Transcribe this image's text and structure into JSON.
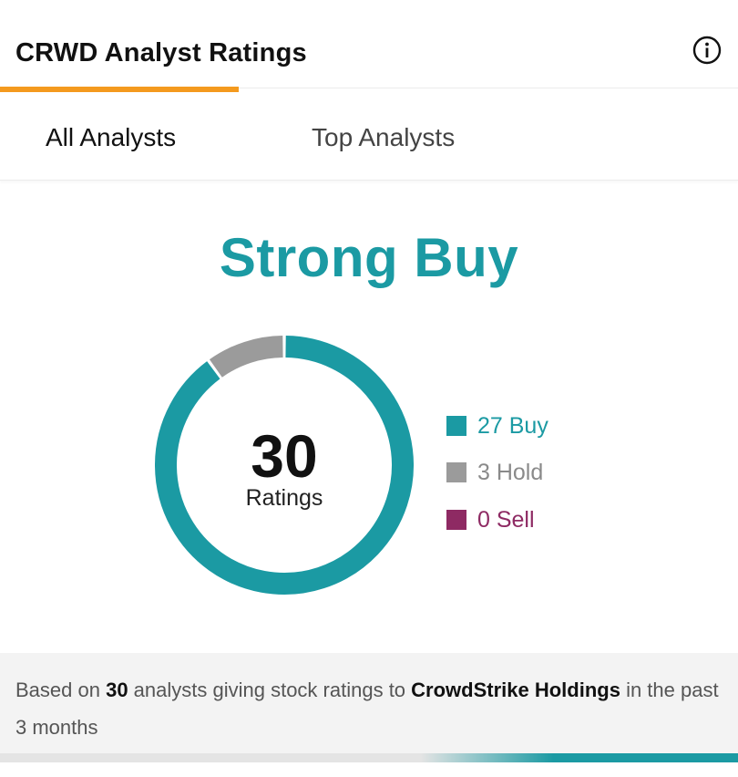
{
  "header": {
    "title": "CRWD Analyst Ratings",
    "info_icon": "info-circle-icon"
  },
  "tabs": [
    {
      "label": "All Analysts",
      "active": true
    },
    {
      "label": "Top Analysts",
      "active": false
    }
  ],
  "accent_color": "#f49a1e",
  "consensus": "Strong Buy",
  "summary": {
    "total": "30",
    "total_label": "Ratings"
  },
  "chart_data": {
    "type": "pie",
    "categories": [
      "Buy",
      "Hold",
      "Sell"
    ],
    "values": [
      27,
      3,
      0
    ],
    "colors": [
      "#1b9aa3",
      "#9b9b9b",
      "#8e2a63"
    ],
    "legend": [
      "27 Buy",
      "3 Hold",
      "0 Sell"
    ],
    "legend_position": "right"
  },
  "footer": {
    "prefix": "Based on ",
    "count": "30",
    "middle": " analysts giving stock ratings to ",
    "company": "CrowdStrike Holdings",
    "suffix": " in the past 3 months"
  }
}
